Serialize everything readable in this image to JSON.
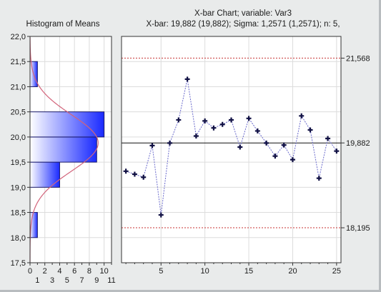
{
  "chart_data": [
    {
      "type": "bar",
      "orientation": "horizontal",
      "title": "Histogram of Means",
      "bins": [
        {
          "from": 18.0,
          "to": 18.5,
          "count": 1
        },
        {
          "from": 18.5,
          "to": 19.0,
          "count": 0
        },
        {
          "from": 19.0,
          "to": 19.5,
          "count": 4
        },
        {
          "from": 19.5,
          "to": 20.0,
          "count": 9
        },
        {
          "from": 20.0,
          "to": 20.5,
          "count": 10
        },
        {
          "from": 20.5,
          "to": 21.0,
          "count": 0
        },
        {
          "from": 21.0,
          "to": 21.5,
          "count": 1
        }
      ],
      "normal_curve": {
        "mean": 19.882,
        "sd": 0.5623,
        "color": "#d2637a"
      },
      "ylim": [
        17.5,
        22.0
      ],
      "yticks": [
        "17,5",
        "18,0",
        "18,5",
        "19,0",
        "19,5",
        "20,0",
        "20,5",
        "21,0",
        "21,5",
        "22,0"
      ],
      "xlim": [
        0,
        11
      ],
      "xticks_top": [
        "0",
        "2",
        "4",
        "6",
        "8",
        "10"
      ],
      "xticks_bottom": [
        "1",
        "3",
        "5",
        "7",
        "9",
        "11"
      ],
      "grid": true
    },
    {
      "type": "line",
      "title": "X-bar Chart; variable:  Var3",
      "subtitle": "X-bar: 19,882 (19,882); Sigma: 1,2571 (1,2571); n: 5,",
      "x": [
        1,
        2,
        3,
        4,
        5,
        6,
        7,
        8,
        9,
        10,
        11,
        12,
        13,
        14,
        15,
        16,
        17,
        18,
        19,
        20,
        21,
        22,
        23,
        24,
        25
      ],
      "values": [
        19.32,
        19.26,
        19.2,
        19.83,
        18.45,
        19.88,
        20.34,
        21.15,
        20.02,
        20.32,
        20.18,
        20.25,
        20.34,
        19.8,
        20.37,
        20.12,
        19.88,
        19.62,
        19.84,
        19.55,
        20.42,
        20.14,
        19.18,
        19.97,
        19.72
      ],
      "center_line": {
        "value": 19.882,
        "label": "19,882"
      },
      "upper_limit": {
        "value": 21.568,
        "label": "21,568"
      },
      "lower_limit": {
        "value": 18.195,
        "label": "18,195"
      },
      "ylim": [
        17.5,
        22.0
      ],
      "xlim": [
        0.5,
        25.5
      ],
      "xticks": [
        "5",
        "10",
        "15",
        "20",
        "25"
      ],
      "grid": true,
      "colors": {
        "points": "#111144",
        "line": "#6a6acc",
        "limits": "#c83232",
        "center": "#111111"
      }
    }
  ]
}
